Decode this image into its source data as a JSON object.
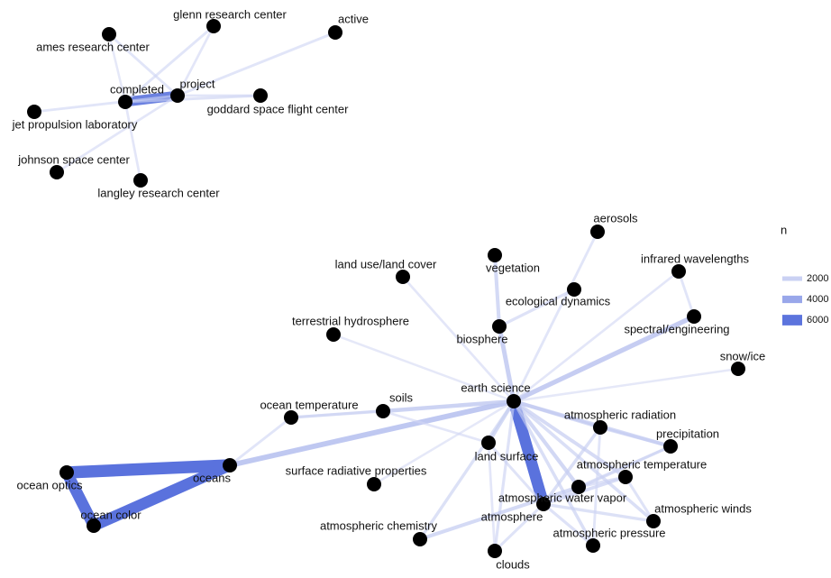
{
  "legend": {
    "title": "n",
    "entries": [
      2000,
      4000,
      6000
    ]
  },
  "nodes": [
    {
      "label": "ames research center"
    },
    {
      "label": "glenn research center"
    },
    {
      "label": "active"
    },
    {
      "label": "completed"
    },
    {
      "label": "project"
    },
    {
      "label": "goddard space flight center"
    },
    {
      "label": "jet propulsion laboratory"
    },
    {
      "label": "johnson space center"
    },
    {
      "label": "langley research center"
    },
    {
      "label": "aerosols"
    },
    {
      "label": "vegetation"
    },
    {
      "label": "land use/land cover"
    },
    {
      "label": "infrared wavelengths"
    },
    {
      "label": "ecological dynamics"
    },
    {
      "label": "terrestrial hydrosphere"
    },
    {
      "label": "biosphere"
    },
    {
      "label": "spectral/engineering"
    },
    {
      "label": "snow/ice"
    },
    {
      "label": "earth science"
    },
    {
      "label": "ocean temperature"
    },
    {
      "label": "soils"
    },
    {
      "label": "atmospheric radiation"
    },
    {
      "label": "precipitation"
    },
    {
      "label": "land surface"
    },
    {
      "label": "surface radiative properties"
    },
    {
      "label": "atmospheric temperature"
    },
    {
      "label": "oceans"
    },
    {
      "label": "ocean optics"
    },
    {
      "label": "ocean color"
    },
    {
      "label": "atmospheric water vapor"
    },
    {
      "label": "atmosphere"
    },
    {
      "label": "atmospheric winds"
    },
    {
      "label": "atmospheric chemistry"
    },
    {
      "label": "atmospheric pressure"
    },
    {
      "label": "clouds"
    }
  ],
  "edges": [
    {
      "from": 3,
      "to": 4,
      "n": 5500
    },
    {
      "from": 0,
      "to": 4,
      "n": 800
    },
    {
      "from": 1,
      "to": 3,
      "n": 800
    },
    {
      "from": 1,
      "to": 4,
      "n": 700
    },
    {
      "from": 2,
      "to": 4,
      "n": 800
    },
    {
      "from": 5,
      "to": 3,
      "n": 900
    },
    {
      "from": 5,
      "to": 4,
      "n": 800
    },
    {
      "from": 6,
      "to": 4,
      "n": 800
    },
    {
      "from": 7,
      "to": 4,
      "n": 700
    },
    {
      "from": 8,
      "to": 3,
      "n": 700
    },
    {
      "from": 0,
      "to": 3,
      "n": 600
    },
    {
      "from": 18,
      "to": 29,
      "n": 6500
    },
    {
      "from": 26,
      "to": 27,
      "n": 7000
    },
    {
      "from": 27,
      "to": 28,
      "n": 6500
    },
    {
      "from": 28,
      "to": 26,
      "n": 6500
    },
    {
      "from": 18,
      "to": 26,
      "n": 2500
    },
    {
      "from": 18,
      "to": 16,
      "n": 2200
    },
    {
      "from": 18,
      "to": 15,
      "n": 2000
    },
    {
      "from": 15,
      "to": 10,
      "n": 1500
    },
    {
      "from": 15,
      "to": 13,
      "n": 1000
    },
    {
      "from": 18,
      "to": 20,
      "n": 1800
    },
    {
      "from": 20,
      "to": 19,
      "n": 1000
    },
    {
      "from": 19,
      "to": 26,
      "n": 800
    },
    {
      "from": 18,
      "to": 22,
      "n": 1500
    },
    {
      "from": 18,
      "to": 23,
      "n": 1500
    },
    {
      "from": 18,
      "to": 21,
      "n": 1400
    },
    {
      "from": 18,
      "to": 25,
      "n": 1400
    },
    {
      "from": 18,
      "to": 31,
      "n": 1200
    },
    {
      "from": 18,
      "to": 33,
      "n": 1200
    },
    {
      "from": 18,
      "to": 34,
      "n": 1000
    },
    {
      "from": 18,
      "to": 32,
      "n": 1100
    },
    {
      "from": 32,
      "to": 30,
      "n": 1500
    },
    {
      "from": 18,
      "to": 9,
      "n": 800
    },
    {
      "from": 18,
      "to": 11,
      "n": 700
    },
    {
      "from": 18,
      "to": 14,
      "n": 600
    },
    {
      "from": 18,
      "to": 17,
      "n": 600
    },
    {
      "from": 12,
      "to": 16,
      "n": 800
    },
    {
      "from": 18,
      "to": 12,
      "n": 700
    },
    {
      "from": 18,
      "to": 24,
      "n": 600
    },
    {
      "from": 18,
      "to": 30,
      "n": 1600
    },
    {
      "from": 29,
      "to": 21,
      "n": 1200
    },
    {
      "from": 29,
      "to": 25,
      "n": 1300
    },
    {
      "from": 29,
      "to": 31,
      "n": 1100
    },
    {
      "from": 29,
      "to": 33,
      "n": 1000
    },
    {
      "from": 29,
      "to": 34,
      "n": 900
    },
    {
      "from": 29,
      "to": 22,
      "n": 1000
    },
    {
      "from": 30,
      "to": 25,
      "n": 1000
    },
    {
      "from": 30,
      "to": 22,
      "n": 900
    },
    {
      "from": 21,
      "to": 22,
      "n": 1300
    },
    {
      "from": 25,
      "to": 31,
      "n": 900
    },
    {
      "from": 21,
      "to": 33,
      "n": 800
    },
    {
      "from": 23,
      "to": 29,
      "n": 900
    },
    {
      "from": 20,
      "to": 23,
      "n": 700
    },
    {
      "from": 19,
      "to": 18,
      "n": 900
    },
    {
      "from": 23,
      "to": 34,
      "n": 700
    }
  ]
}
